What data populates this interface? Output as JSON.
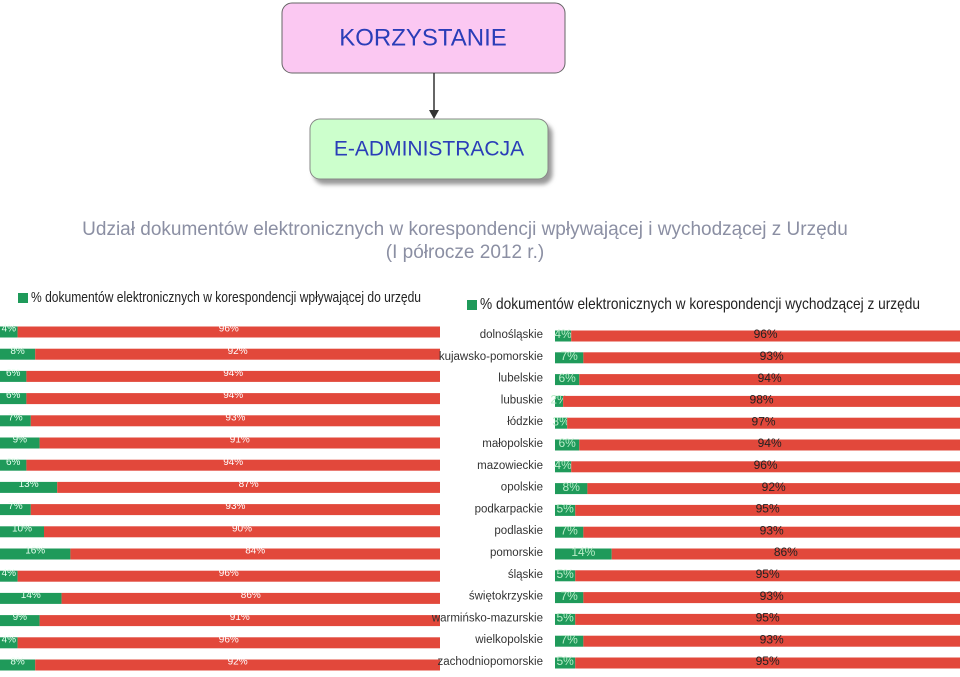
{
  "diagram": {
    "nodes": [
      {
        "label": "KORZYSTANIE"
      },
      {
        "label": "E-ADMINISTRACJA"
      }
    ]
  },
  "caption": [
    "Udział dokumentów elektronicznych w korespondencji wpływającej i wychodzącej z Urzędu",
    "(I półrocze 2012 r.)"
  ],
  "chart_data": [
    {
      "type": "bar",
      "orientation": "horizontal",
      "stacked": true,
      "series": [
        {
          "name": "% dokumentów elektronicznych w korespondencji wpływającej do urzędu",
          "color": "#1f9a5a",
          "values": [
            4,
            8,
            6,
            6,
            7,
            9,
            6,
            13,
            7,
            10,
            16,
            4,
            14,
            9,
            4,
            8
          ],
          "value_labels": [
            "4%",
            "8%",
            "6%",
            "6%",
            "7%",
            "9%",
            "6%",
            "13%",
            "7%",
            "10%",
            "16%",
            "4%",
            "14%",
            "9%",
            "4%",
            "8%"
          ]
        },
        {
          "color": "#e2483b",
          "values": [
            96,
            92,
            94,
            94,
            93,
            91,
            94,
            87,
            93,
            90,
            84,
            96,
            86,
            91,
            96,
            92
          ],
          "value_labels": [
            "96%",
            "92%",
            "94%",
            "94%",
            "93%",
            "91%",
            "94%",
            "87%",
            "93%",
            "90%",
            "84%",
            "96%",
            "86%",
            "91%",
            "96%",
            "92%"
          ]
        }
      ]
    },
    {
      "type": "bar",
      "orientation": "horizontal",
      "stacked": true,
      "categories": [
        "dolnośląskie",
        "kujawsko-pomorskie",
        "lubelskie",
        "lubuskie",
        "łódzkie",
        "małopolskie",
        "mazowieckie",
        "opolskie",
        "podkarpackie",
        "podlaskie",
        "pomorskie",
        "śląskie",
        "świętokrzyskie",
        "warmińsko-mazurskie",
        "wielkopolskie",
        "zachodniopomorskie"
      ],
      "series": [
        {
          "name": "% dokumentów elektronicznych w korespondencji wychodzącej z urzędu",
          "color": "#1f9a5a",
          "values": [
            4,
            7,
            6,
            2,
            3,
            6,
            4,
            8,
            5,
            7,
            14,
            5,
            7,
            5,
            7,
            5
          ],
          "value_labels": [
            "4%",
            "7%",
            "6%",
            "2%",
            "3%",
            "6%",
            "4%",
            "8%",
            "5%",
            "7%",
            "14%",
            "5%",
            "7%",
            "5%",
            "7%",
            "5%"
          ]
        },
        {
          "color": "#e2483b",
          "values": [
            96,
            93,
            94,
            98,
            97,
            94,
            96,
            92,
            95,
            93,
            86,
            95,
            93,
            95,
            93,
            95
          ],
          "value_labels": [
            "96%",
            "93%",
            "94%",
            "98%",
            "97%",
            "94%",
            "96%",
            "92%",
            "95%",
            "93%",
            "86%",
            "95%",
            "93%",
            "95%",
            "93%",
            "95%"
          ]
        }
      ]
    }
  ]
}
